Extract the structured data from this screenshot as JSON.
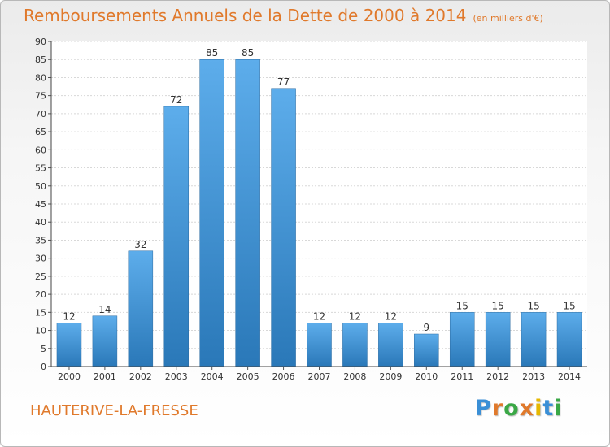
{
  "header": {
    "title": "Remboursements Annuels de la Dette de 2000 à 2014",
    "unit": "(en milliers d'€)"
  },
  "footer": {
    "commune": "HAUTERIVE-LA-FRESSE",
    "brand": "Proxiti"
  },
  "colors": {
    "title": "#e0792b",
    "bar_top": "#5dadeb",
    "bar_bottom": "#2a78b8",
    "brand_letters": [
      "#3a8fd6",
      "#e0792b",
      "#3aa846",
      "#e0792b",
      "#e6b800",
      "#3a8fd6",
      "#3aa846"
    ]
  },
  "chart_data": {
    "type": "bar",
    "categories": [
      "2000",
      "2001",
      "2002",
      "2003",
      "2004",
      "2005",
      "2006",
      "2007",
      "2008",
      "2009",
      "2010",
      "2011",
      "2012",
      "2013",
      "2014"
    ],
    "values": [
      12,
      14,
      32,
      72,
      85,
      85,
      77,
      12,
      12,
      12,
      9,
      15,
      15,
      15,
      15
    ],
    "title": "Remboursements Annuels de la Dette de 2000 à 2014",
    "ylim": [
      0,
      90
    ],
    "yticks": [
      0,
      5,
      10,
      15,
      20,
      25,
      30,
      35,
      40,
      45,
      50,
      55,
      60,
      65,
      70,
      75,
      80,
      85,
      90
    ],
    "grid": true,
    "data_labels": true
  }
}
